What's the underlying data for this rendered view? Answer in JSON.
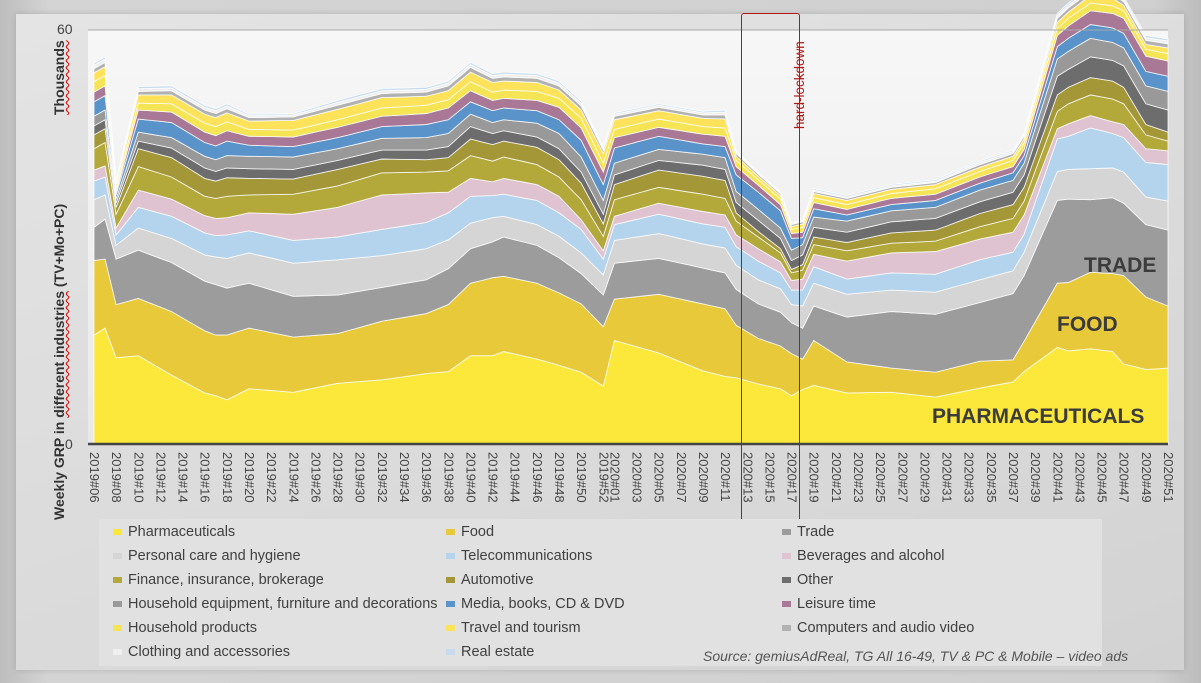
{
  "chart_data": {
    "type": "area",
    "stacked": true,
    "title": "",
    "ylabel": "Weekly GRP in different industries (TV+Mo+PC)",
    "yunit_label": "Thousands",
    "xlabel": "",
    "ylim": [
      0,
      60
    ],
    "yticks": [
      0,
      60
    ],
    "grid": false,
    "legend_position": "bottom",
    "x_tick_labels": [
      "2019#06",
      "2019#08",
      "2019#10",
      "2019#12",
      "2019#14",
      "2019#16",
      "2019#18",
      "2019#20",
      "2019#22",
      "2019#24",
      "2019#26",
      "2019#28",
      "2019#30",
      "2019#32",
      "2019#34",
      "2019#36",
      "2019#38",
      "2019#40",
      "2019#42",
      "2019#44",
      "2019#46",
      "2019#48",
      "2019#50",
      "2019#52",
      "2020#01",
      "2020#03",
      "2020#05",
      "2020#07",
      "2020#09",
      "2020#11",
      "2020#13",
      "2020#15",
      "2020#17",
      "2020#19",
      "2020#21",
      "2020#23",
      "2020#25",
      "2020#27",
      "2020#29",
      "2020#31",
      "2020#33",
      "2020#35",
      "2020#37",
      "2020#39",
      "2020#41",
      "2020#43",
      "2020#45",
      "2020#47",
      "2020#49",
      "2020#51"
    ],
    "anchor_weeks": [
      "2019#06",
      "2019#07",
      "2019#08",
      "2019#10",
      "2019#13",
      "2019#16",
      "2019#17",
      "2019#18",
      "2019#20",
      "2019#24",
      "2019#28",
      "2019#32",
      "2019#36",
      "2019#38",
      "2019#40",
      "2019#42",
      "2019#43",
      "2019#46",
      "2019#48",
      "2019#50",
      "2019#52",
      "2020#01",
      "2020#05",
      "2020#09",
      "2020#11",
      "2020#12",
      "2020#14",
      "2020#16",
      "2020#17",
      "2020#18",
      "2020#19",
      "2020#22",
      "2020#26",
      "2020#30",
      "2020#34",
      "2020#37",
      "2020#38",
      "2020#41",
      "2020#42",
      "2020#44",
      "2020#46",
      "2020#47",
      "2020#49",
      "2020#51"
    ],
    "series": [
      {
        "name": "Pharmaceuticals",
        "color": "#fbe83a",
        "values": [
          15.8,
          16.8,
          12.5,
          12.8,
          10.0,
          7.4,
          7.0,
          6.4,
          8.0,
          7.5,
          8.8,
          9.3,
          10.2,
          10.5,
          12.8,
          12.8,
          13.4,
          12.3,
          11.4,
          10.4,
          8.4,
          15.0,
          13.2,
          10.6,
          9.8,
          9.6,
          8.7,
          8.0,
          7.0,
          7.9,
          8.5,
          7.4,
          7.5,
          6.8,
          8.1,
          9.0,
          10.5,
          14.0,
          13.5,
          13.8,
          13.4,
          11.6,
          10.8,
          11.0
        ]
      },
      {
        "name": "Food",
        "color": "#e8c93a",
        "values": [
          10.8,
          10.0,
          7.7,
          8.3,
          9.2,
          9.0,
          8.8,
          9.4,
          8.8,
          8.0,
          7.2,
          8.5,
          8.7,
          9.7,
          10.5,
          11.3,
          10.9,
          11.0,
          10.5,
          9.9,
          8.6,
          6.0,
          8.5,
          9.7,
          9.8,
          7.6,
          6.6,
          6.2,
          6.1,
          4.4,
          6.5,
          4.5,
          3.5,
          3.6,
          3.9,
          3.2,
          4.4,
          9.3,
          9.9,
          11.1,
          11.3,
          12.8,
          10.5,
          9.0
        ]
      },
      {
        "name": "Trade",
        "color": "#9c9c9c",
        "values": [
          4.8,
          5.8,
          6.6,
          7.0,
          7.1,
          7.2,
          7.3,
          6.8,
          6.5,
          5.9,
          5.6,
          4.9,
          4.9,
          5.2,
          5.0,
          5.2,
          5.7,
          5.5,
          5.1,
          4.4,
          4.6,
          5.2,
          5.2,
          5.2,
          5.2,
          5.2,
          5.0,
          4.9,
          4.5,
          4.5,
          5.0,
          6.5,
          8.2,
          8.4,
          8.5,
          9.6,
          9.5,
          12.0,
          12.1,
          10.5,
          11.0,
          10.5,
          10.5,
          11.0
        ]
      },
      {
        "name": "Personal care and hygiene",
        "color": "#d5d5d5",
        "values": [
          4.0,
          3.5,
          2.0,
          3.2,
          3.5,
          3.8,
          4.0,
          4.3,
          4.4,
          4.8,
          5.1,
          4.6,
          4.5,
          4.2,
          3.7,
          3.5,
          3.0,
          3.0,
          3.1,
          3.0,
          2.9,
          3.3,
          3.6,
          3.5,
          3.6,
          3.5,
          3.5,
          3.4,
          2.6,
          3.2,
          3.3,
          3.3,
          3.1,
          3.2,
          3.3,
          3.3,
          3.4,
          4.2,
          4.3,
          4.5,
          4.3,
          4.5,
          4.0,
          4.2
        ]
      },
      {
        "name": "Telecommunications",
        "color": "#b4d3ec",
        "values": [
          2.7,
          2.6,
          1.5,
          3.0,
          3.2,
          3.2,
          3.1,
          3.4,
          3.2,
          3.3,
          3.3,
          3.8,
          3.8,
          3.9,
          3.9,
          3.2,
          3.2,
          3.5,
          3.4,
          3.4,
          2.3,
          2.3,
          2.8,
          2.9,
          3.0,
          2.7,
          2.7,
          2.3,
          2.1,
          2.3,
          2.4,
          2.2,
          2.5,
          2.6,
          2.9,
          2.7,
          2.6,
          4.7,
          4.8,
          5.9,
          5.0,
          5.0,
          5.0,
          5.3
        ]
      },
      {
        "name": "Beverages and alcohol",
        "color": "#e0c3d1",
        "values": [
          1.6,
          1.6,
          1.0,
          2.5,
          2.5,
          2.5,
          2.5,
          2.5,
          2.6,
          3.8,
          4.3,
          5.0,
          4.3,
          3.0,
          2.6,
          2.0,
          2.3,
          2.3,
          2.4,
          1.4,
          1.2,
          1.2,
          1.6,
          1.8,
          1.8,
          1.7,
          1.8,
          1.6,
          1.4,
          1.6,
          1.8,
          2.6,
          2.9,
          3.3,
          3.0,
          2.9,
          2.8,
          1.5,
          1.8,
          1.8,
          1.7,
          1.9,
          2.0,
          2.0
        ]
      },
      {
        "name": "Finance, insurance, brokerage",
        "color": "#b3a93a",
        "values": [
          3.1,
          3.4,
          2.0,
          3.4,
          3.2,
          2.8,
          2.9,
          3.1,
          2.6,
          2.9,
          3.1,
          3.2,
          3.0,
          3.1,
          3.3,
          3.0,
          3.1,
          2.9,
          2.8,
          2.9,
          2.1,
          2.4,
          2.3,
          2.5,
          2.4,
          2.0,
          1.7,
          1.3,
          1.1,
          1.3,
          1.4,
          1.5,
          1.4,
          1.5,
          1.8,
          2.0,
          2.0,
          2.5,
          2.9,
          3.0,
          3.3,
          3.0,
          2.0,
          1.4
        ]
      },
      {
        "name": "Automotive",
        "color": "#a49737",
        "values": [
          2.0,
          2.0,
          1.0,
          2.6,
          2.8,
          2.6,
          2.5,
          2.7,
          2.4,
          2.2,
          2.4,
          2.0,
          1.8,
          1.9,
          2.4,
          2.4,
          2.3,
          2.5,
          2.5,
          2.4,
          1.8,
          2.2,
          2.5,
          2.6,
          2.6,
          1.2,
          0.8,
          0.6,
          0.5,
          0.8,
          1.1,
          1.2,
          1.5,
          1.6,
          1.9,
          2.0,
          2.0,
          2.4,
          2.4,
          2.5,
          2.6,
          2.4,
          1.5,
          1.3
        ]
      },
      {
        "name": "Other",
        "color": "#6d6d6d",
        "values": [
          1.3,
          1.3,
          0.6,
          1.1,
          1.4,
          1.5,
          1.4,
          1.4,
          1.4,
          1.4,
          1.3,
          1.3,
          1.4,
          1.6,
          1.8,
          1.6,
          1.5,
          1.5,
          1.6,
          1.6,
          1.4,
          1.4,
          1.4,
          1.6,
          1.6,
          1.5,
          1.6,
          1.5,
          1.3,
          1.4,
          1.4,
          1.5,
          1.6,
          1.7,
          1.7,
          1.8,
          1.8,
          2.7,
          2.6,
          3.0,
          3.0,
          3.1,
          3.0,
          3.2
        ]
      },
      {
        "name": "Household equipment, furniture and decorations",
        "color": "#999999",
        "values": [
          1.4,
          1.4,
          0.6,
          1.3,
          1.5,
          1.7,
          1.7,
          1.8,
          1.8,
          1.8,
          1.7,
          1.7,
          1.8,
          1.9,
          1.8,
          1.6,
          1.6,
          2.0,
          2.2,
          2.2,
          2.0,
          1.7,
          1.6,
          1.6,
          1.7,
          1.6,
          1.6,
          1.5,
          1.5,
          1.5,
          1.5,
          1.6,
          1.6,
          1.6,
          1.7,
          1.7,
          1.7,
          2.5,
          2.6,
          2.7,
          2.6,
          2.6,
          2.6,
          2.7
        ]
      },
      {
        "name": "Media, books, CD & DVD",
        "color": "#5a93c9",
        "values": [
          2.1,
          2.1,
          0.6,
          1.9,
          2.2,
          2.0,
          2.0,
          2.1,
          1.6,
          1.5,
          1.6,
          1.7,
          1.9,
          2.0,
          1.8,
          1.7,
          1.7,
          1.8,
          2.0,
          2.4,
          2.3,
          2.2,
          1.9,
          1.5,
          1.6,
          2.4,
          2.5,
          2.5,
          1.7,
          1.0,
          1.2,
          0.9,
          0.9,
          1.0,
          1.0,
          1.1,
          1.1,
          1.8,
          1.9,
          2.0,
          2.1,
          2.1,
          2.1,
          2.2
        ]
      },
      {
        "name": "Leisure time",
        "color": "#a87896",
        "values": [
          1.4,
          1.4,
          0.4,
          1.3,
          1.5,
          1.5,
          1.5,
          1.5,
          1.3,
          1.4,
          1.5,
          1.5,
          1.6,
          1.7,
          1.6,
          1.5,
          1.4,
          1.5,
          1.8,
          1.8,
          1.8,
          1.5,
          1.3,
          1.4,
          1.5,
          1.2,
          1.0,
          0.9,
          0.7,
          0.8,
          0.9,
          0.8,
          0.9,
          0.9,
          0.9,
          0.9,
          0.9,
          1.6,
          1.8,
          2.0,
          2.1,
          2.2,
          2.2,
          2.2
        ]
      },
      {
        "name": "Household products",
        "color": "#f5e453",
        "values": [
          1.5,
          1.5,
          0.5,
          1.0,
          1.2,
          1.3,
          1.3,
          1.3,
          1.0,
          1.0,
          1.1,
          1.2,
          1.2,
          1.2,
          1.3,
          1.2,
          1.2,
          1.3,
          1.3,
          1.4,
          1.3,
          1.2,
          1.2,
          1.1,
          1.2,
          0.9,
          0.8,
          0.8,
          0.6,
          0.7,
          0.7,
          0.7,
          0.7,
          0.8,
          0.8,
          0.9,
          0.9,
          1.0,
          1.1,
          1.1,
          1.1,
          1.1,
          1.0,
          1.1
        ]
      },
      {
        "name": "Travel and tourism",
        "color": "#fde25a",
        "values": [
          1.3,
          1.3,
          0.6,
          1.2,
          1.3,
          1.3,
          1.3,
          1.3,
          1.2,
          1.4,
          1.5,
          1.5,
          1.3,
          1.3,
          1.4,
          1.4,
          1.3,
          1.3,
          1.2,
          1.2,
          1.4,
          1.4,
          1.2,
          1.2,
          1.3,
          0.6,
          0.5,
          0.5,
          0.4,
          0.5,
          0.6,
          0.6,
          0.6,
          0.6,
          0.6,
          0.6,
          0.6,
          0.9,
          0.9,
          1.1,
          1.1,
          0.8,
          0.7,
          0.8
        ]
      },
      {
        "name": "Computers and audio video",
        "color": "#b1b1b1",
        "values": [
          0.6,
          0.6,
          0.3,
          0.5,
          0.6,
          0.6,
          0.6,
          0.6,
          0.5,
          0.5,
          0.6,
          0.6,
          0.6,
          0.7,
          0.7,
          0.6,
          0.6,
          0.6,
          0.6,
          0.6,
          0.5,
          0.5,
          0.5,
          0.5,
          0.6,
          0.4,
          0.3,
          0.3,
          0.3,
          0.3,
          0.3,
          0.3,
          0.3,
          0.3,
          0.4,
          0.4,
          0.4,
          0.6,
          0.6,
          0.6,
          0.6,
          0.5,
          0.6,
          0.6
        ]
      },
      {
        "name": "Clothing and accessories",
        "color": "#efefef",
        "values": [
          0.5,
          0.5,
          0.2,
          0.4,
          0.4,
          0.4,
          0.4,
          0.4,
          0.3,
          0.3,
          0.4,
          0.4,
          0.4,
          0.4,
          0.4,
          0.4,
          0.4,
          0.4,
          0.4,
          0.4,
          0.3,
          0.3,
          0.3,
          0.3,
          0.4,
          0.2,
          0.2,
          0.2,
          0.2,
          0.2,
          0.2,
          0.2,
          0.2,
          0.2,
          0.3,
          0.3,
          0.3,
          0.4,
          0.4,
          0.4,
          0.4,
          0.4,
          0.4,
          0.4
        ]
      },
      {
        "name": "Real estate",
        "color": "#c6dcee",
        "values": [
          0.3,
          0.3,
          0.1,
          0.3,
          0.3,
          0.3,
          0.3,
          0.3,
          0.2,
          0.2,
          0.3,
          0.3,
          0.3,
          0.3,
          0.3,
          0.3,
          0.3,
          0.3,
          0.3,
          0.3,
          0.2,
          0.2,
          0.2,
          0.2,
          0.3,
          0.2,
          0.1,
          0.1,
          0.1,
          0.1,
          0.2,
          0.2,
          0.2,
          0.2,
          0.2,
          0.2,
          0.2,
          0.3,
          0.3,
          0.3,
          0.3,
          0.3,
          0.3,
          0.3
        ]
      }
    ],
    "annotations": [
      {
        "text": "TRADE",
        "series": "Trade"
      },
      {
        "text": "FOOD",
        "series": "Food"
      },
      {
        "text": "PHARMACEUTICALS",
        "series": "Pharmaceuticals"
      },
      {
        "text": "hard-lockdown",
        "range": [
          "2020#13",
          "2020#17"
        ]
      }
    ]
  },
  "axis": {
    "y_unit": "Thousands",
    "y_title_part1": "Weekly GRP in ",
    "y_title_part2": "different industries",
    "y_title_part3": " (TV+Mo+PC)",
    "y_max_label": "60",
    "y_min_label": "0"
  },
  "legend": {
    "items": [
      {
        "label": "Pharmaceuticals",
        "color": "#fbe83a"
      },
      {
        "label": "Food",
        "color": "#e8c93a"
      },
      {
        "label": "Trade",
        "color": "#9c9c9c"
      },
      {
        "label": "Personal care and hygiene",
        "color": "#d5d5d5"
      },
      {
        "label": "Telecommunications",
        "color": "#b4d3ec"
      },
      {
        "label": "Beverages and alcohol",
        "color": "#e0c3d1"
      },
      {
        "label": "Finance, insurance, brokerage",
        "color": "#b3a93a"
      },
      {
        "label": "Automotive",
        "color": "#a49737"
      },
      {
        "label": "Other",
        "color": "#6d6d6d"
      },
      {
        "label": "Household equipment, furniture and decorations",
        "color": "#999999"
      },
      {
        "label": "Media, books, CD & DVD",
        "color": "#5a93c9"
      },
      {
        "label": "Leisure time",
        "color": "#a87896"
      },
      {
        "label": "Household products",
        "color": "#f5e453"
      },
      {
        "label": "Travel and tourism",
        "color": "#fde25a"
      },
      {
        "label": "Computers and audio video",
        "color": "#b1b1b1"
      },
      {
        "label": "Clothing and accessories",
        "color": "#efefef"
      },
      {
        "label": "Real estate",
        "color": "#c6dcee"
      }
    ]
  },
  "annotations": {
    "trade": "TRADE",
    "food": "FOOD",
    "pharma": "PHARMACEUTICALS",
    "lockdown": "hard-lockdown"
  },
  "source": "Source: gemiusAdReal, TG All 16-49, TV & PC & Mobile – video ads"
}
